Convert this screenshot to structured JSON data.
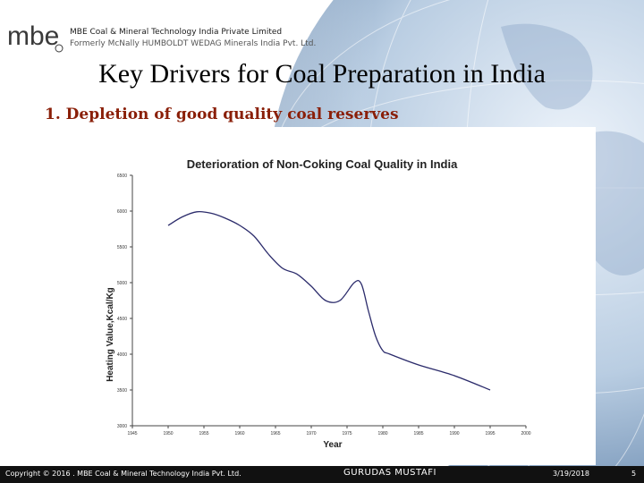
{
  "header": {
    "logo_text": "mbe",
    "company_name": "MBE Coal & Mineral Technology India Private Limited",
    "company_former": "Formerly McNally HUMBOLDT WEDAG Minerals India Pvt. Ltd."
  },
  "slide": {
    "title": "Key Drivers for Coal Preparation in India",
    "subtitle": "1. Depletion of good quality coal reserves"
  },
  "chart_data": {
    "type": "line",
    "title": "Deterioration of Non-Coking Coal Quality in India",
    "xlabel": "Year",
    "ylabel": "Heating Value,Kcal/Kg",
    "xlim": [
      1945,
      2000
    ],
    "ylim": [
      3000,
      6500
    ],
    "xticks": [
      1945,
      1950,
      1955,
      1960,
      1965,
      1970,
      1975,
      1980,
      1985,
      1990,
      1995,
      2000
    ],
    "yticks": [
      3000,
      3500,
      4000,
      4500,
      5000,
      5500,
      6000,
      6500
    ],
    "grid": false,
    "series": [
      {
        "color": "#2b2b6b",
        "x": [
          1950,
          1952,
          1954,
          1956,
          1958,
          1960,
          1962,
          1964,
          1966,
          1968,
          1970,
          1972,
          1974,
          1976,
          1977,
          1978,
          1979,
          1980,
          1981,
          1985,
          1990,
          1995
        ],
        "y": [
          5800,
          5920,
          5990,
          5970,
          5900,
          5800,
          5650,
          5400,
          5200,
          5120,
          4950,
          4750,
          4750,
          5000,
          4980,
          4600,
          4250,
          4050,
          4000,
          3850,
          3700,
          3500
        ]
      }
    ]
  },
  "footer": {
    "copyright": "Copyright © 2016 . MBE Coal & Mineral Technology India Pvt. Ltd.",
    "author": "GURUDAS MUSTAFI",
    "date": "3/19/2018",
    "page": "5"
  }
}
